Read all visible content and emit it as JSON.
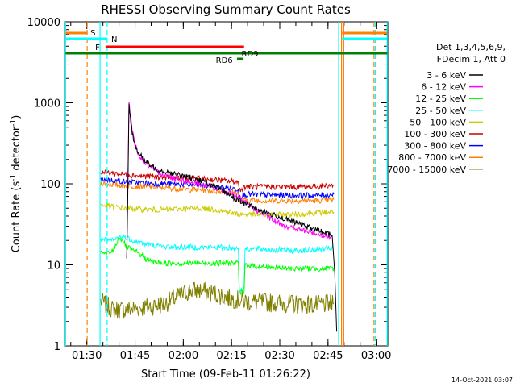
{
  "chart_data": {
    "type": "line",
    "title": "RHESSI Observing Summary Count Rates",
    "xlabel": "Start Time (09-Feb-11 01:26:22)",
    "ylabel_main": "Count Rate (s",
    "ylabel_exp1": "-1",
    "ylabel_mid": " detector",
    "ylabel_exp2": "-1",
    "ylabel_end": ")",
    "y_scale": "log",
    "ylim": [
      1,
      10000
    ],
    "xlim_minutes": [
      1.2,
      101.5
    ],
    "x_ticks": [
      {
        "m": 7.9,
        "label": "01:30"
      },
      {
        "m": 22.9,
        "label": "01:45"
      },
      {
        "m": 37.9,
        "label": "02:00"
      },
      {
        "m": 52.9,
        "label": "02:15"
      },
      {
        "m": 67.9,
        "label": "02:30"
      },
      {
        "m": 82.9,
        "label": "02:45"
      },
      {
        "m": 97.9,
        "label": "03:00"
      }
    ],
    "y_ticks": [
      {
        "v": 1,
        "label": "1"
      },
      {
        "v": 10,
        "label": "10"
      },
      {
        "v": 100,
        "label": "100"
      },
      {
        "v": 1000,
        "label": "1000"
      },
      {
        "v": 10000,
        "label": "10000"
      }
    ],
    "legend_header1": "Det 1,3,4,5,6,9,",
    "legend_header2": "FDecim 1, Att 0",
    "legend_placement": "right",
    "series": [
      {
        "name": "3 - 6 keV",
        "color": "#000000",
        "points": [
          [
            20.3,
            12
          ],
          [
            20.6,
            60
          ],
          [
            21.0,
            900
          ],
          [
            22,
            420
          ],
          [
            23,
            300
          ],
          [
            24,
            240
          ],
          [
            26,
            190
          ],
          [
            28,
            165
          ],
          [
            30,
            150
          ],
          [
            33,
            140
          ],
          [
            36,
            130
          ],
          [
            40,
            120
          ],
          [
            44,
            108
          ],
          [
            48,
            90
          ],
          [
            52,
            75
          ],
          [
            55,
            62
          ],
          [
            58,
            55
          ],
          [
            62,
            47
          ],
          [
            66,
            41
          ],
          [
            70,
            36
          ],
          [
            74,
            32
          ],
          [
            78,
            28
          ],
          [
            82,
            25
          ],
          [
            84.2,
            23
          ],
          [
            85,
            8
          ],
          [
            85.6,
            1.5
          ]
        ]
      },
      {
        "name": "6 - 12 keV",
        "color": "#ff00ff",
        "points": [
          [
            20.3,
            12
          ],
          [
            20.6,
            80
          ],
          [
            21.0,
            1000
          ],
          [
            22,
            450
          ],
          [
            23,
            300
          ],
          [
            24,
            230
          ],
          [
            26,
            180
          ],
          [
            28,
            155
          ],
          [
            30,
            140
          ],
          [
            33,
            125
          ],
          [
            36,
            115
          ],
          [
            40,
            105
          ],
          [
            44,
            97
          ],
          [
            48,
            88
          ],
          [
            52,
            78
          ],
          [
            55,
            68
          ],
          [
            58,
            56
          ],
          [
            62,
            44
          ],
          [
            66,
            35
          ],
          [
            70,
            30
          ],
          [
            74,
            27
          ],
          [
            78,
            25
          ],
          [
            82,
            23
          ],
          [
            84.2,
            22
          ]
        ]
      },
      {
        "name": "12 - 25 keV",
        "color": "#00ff00",
        "points": [
          [
            12.2,
            15
          ],
          [
            13,
            14
          ],
          [
            14,
            13.5
          ],
          [
            15,
            14
          ],
          [
            16,
            15
          ],
          [
            17,
            18
          ],
          [
            18,
            22
          ],
          [
            19,
            20
          ],
          [
            20,
            17
          ],
          [
            22,
            15
          ],
          [
            24,
            14
          ],
          [
            26,
            12
          ],
          [
            28,
            11
          ],
          [
            32,
            10.5
          ],
          [
            38,
            10.5
          ],
          [
            44,
            10.5
          ],
          [
            50,
            10.5
          ],
          [
            55,
            10.5
          ],
          [
            55.3,
            4.5
          ],
          [
            56.8,
            4.5
          ],
          [
            57.1,
            10
          ],
          [
            62,
            9.5
          ],
          [
            70,
            9
          ],
          [
            78,
            9
          ],
          [
            84.7,
            9
          ]
        ]
      },
      {
        "name": "25 - 50 keV",
        "color": "#00ffff",
        "points": [
          [
            12.2,
            21
          ],
          [
            14,
            20
          ],
          [
            16,
            20
          ],
          [
            18,
            22
          ],
          [
            20,
            22
          ],
          [
            22,
            20
          ],
          [
            26,
            18
          ],
          [
            30,
            17
          ],
          [
            36,
            16.5
          ],
          [
            42,
            16.5
          ],
          [
            48,
            16.5
          ],
          [
            55,
            16
          ],
          [
            55.3,
            5
          ],
          [
            56.8,
            5
          ],
          [
            57.1,
            16
          ],
          [
            64,
            15.5
          ],
          [
            72,
            15
          ],
          [
            80,
            15.5
          ],
          [
            84.7,
            16
          ]
        ]
      },
      {
        "name": "50 - 100 keV",
        "color": "#cccc00",
        "points": [
          [
            12.2,
            55
          ],
          [
            16,
            52
          ],
          [
            20,
            50
          ],
          [
            26,
            48
          ],
          [
            32,
            48
          ],
          [
            38,
            49
          ],
          [
            44,
            50
          ],
          [
            48,
            48
          ],
          [
            52,
            45
          ],
          [
            55,
            42
          ],
          [
            58,
            42
          ],
          [
            64,
            41
          ],
          [
            72,
            42
          ],
          [
            80,
            44
          ],
          [
            84.7,
            45
          ]
        ]
      },
      {
        "name": "100 - 300 keV",
        "color": "#cc0000",
        "points": [
          [
            12.2,
            140
          ],
          [
            16,
            136
          ],
          [
            20,
            130
          ],
          [
            26,
            124
          ],
          [
            32,
            120
          ],
          [
            38,
            118
          ],
          [
            44,
            115
          ],
          [
            50,
            110
          ],
          [
            55,
            105
          ],
          [
            55.3,
            84
          ],
          [
            57.1,
            92
          ],
          [
            64,
            92
          ],
          [
            72,
            91
          ],
          [
            80,
            93
          ],
          [
            84.7,
            97
          ]
        ]
      },
      {
        "name": "300 - 800 keV",
        "color": "#0000ff",
        "points": [
          [
            12.2,
            115
          ],
          [
            16,
            110
          ],
          [
            20,
            106
          ],
          [
            26,
            102
          ],
          [
            32,
            100
          ],
          [
            38,
            98
          ],
          [
            44,
            95
          ],
          [
            50,
            90
          ],
          [
            55,
            86
          ],
          [
            55.3,
            70
          ],
          [
            57.1,
            74
          ],
          [
            64,
            73
          ],
          [
            72,
            72
          ],
          [
            80,
            72
          ],
          [
            84.7,
            74
          ]
        ]
      },
      {
        "name": "800 - 7000 keV",
        "color": "#ff8000",
        "points": [
          [
            12.2,
            102
          ],
          [
            16,
            98
          ],
          [
            20,
            95
          ],
          [
            26,
            92
          ],
          [
            32,
            89
          ],
          [
            38,
            86
          ],
          [
            44,
            84
          ],
          [
            50,
            80
          ],
          [
            55,
            77
          ],
          [
            55.3,
            59
          ],
          [
            57.1,
            63
          ],
          [
            64,
            62
          ],
          [
            72,
            62
          ],
          [
            80,
            62
          ],
          [
            84.7,
            64
          ]
        ]
      },
      {
        "name": "7000 - 15000 keV",
        "color": "#808000",
        "points": [
          [
            12.2,
            3.6
          ],
          [
            16,
            2.8
          ],
          [
            20,
            2.8
          ],
          [
            26,
            3.0
          ],
          [
            32,
            3.3
          ],
          [
            36,
            4.0
          ],
          [
            40,
            4.8
          ],
          [
            44,
            4.8
          ],
          [
            48,
            4.4
          ],
          [
            52,
            3.9
          ],
          [
            56,
            3.6
          ],
          [
            60,
            3.5
          ],
          [
            66,
            3.4
          ],
          [
            72,
            3.3
          ],
          [
            78,
            3.2
          ],
          [
            84.7,
            3.3
          ]
        ]
      }
    ],
    "flags": [
      {
        "name": "S",
        "color": "#ff8000",
        "label": "S"
      },
      {
        "name": "N",
        "color": "#00ffff",
        "label": "N"
      },
      {
        "name": "F",
        "color": "#ff0000",
        "label": "F"
      },
      {
        "name": "RD9",
        "color": "#008000",
        "label": "RD9"
      },
      {
        "name": "RD6",
        "color": "#008000",
        "label": "RD6"
      }
    ],
    "timestamp": "14-Oct-2021 03:07"
  }
}
